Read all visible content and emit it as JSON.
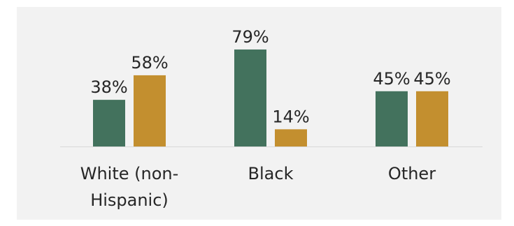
{
  "chart_data": {
    "type": "bar",
    "categories": [
      [
        "White (non-",
        "Hispanic)"
      ],
      [
        "Black"
      ],
      [
        "Other"
      ]
    ],
    "series": [
      {
        "values": [
          38,
          79,
          45
        ],
        "labels": [
          "38%",
          "79%",
          "45%"
        ],
        "color": "#43725d"
      },
      {
        "values": [
          58,
          14,
          45
        ],
        "labels": [
          "58%",
          "14%",
          "45%"
        ],
        "color": "#c38f2f"
      }
    ],
    "ylim": [
      0,
      100
    ],
    "grid": false,
    "legend": "none",
    "axis_color": "#d9d9d9",
    "background": "#f2f2f2"
  }
}
